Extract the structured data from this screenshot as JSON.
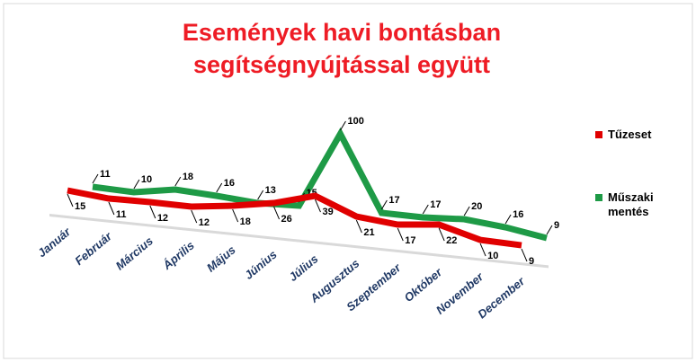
{
  "chart_data": {
    "type": "line",
    "title": "Események havi bontásban segítségnyújtással együtt",
    "categories": [
      "Január",
      "Február",
      "Március",
      "Április",
      "Május",
      "Június",
      "Július",
      "Augusztus",
      "Szeptember",
      "Október",
      "November",
      "December"
    ],
    "series": [
      {
        "name": "Tűzeset",
        "color": "#e00000",
        "values": [
          15,
          11,
          12,
          12,
          18,
          26,
          39,
          21,
          17,
          22,
          10,
          9
        ]
      },
      {
        "name": "Műszaki mentés",
        "color": "#1e9a46",
        "values": [
          11,
          10,
          18,
          16,
          13,
          15,
          100,
          17,
          17,
          20,
          16,
          9
        ]
      }
    ],
    "legend": "right"
  }
}
